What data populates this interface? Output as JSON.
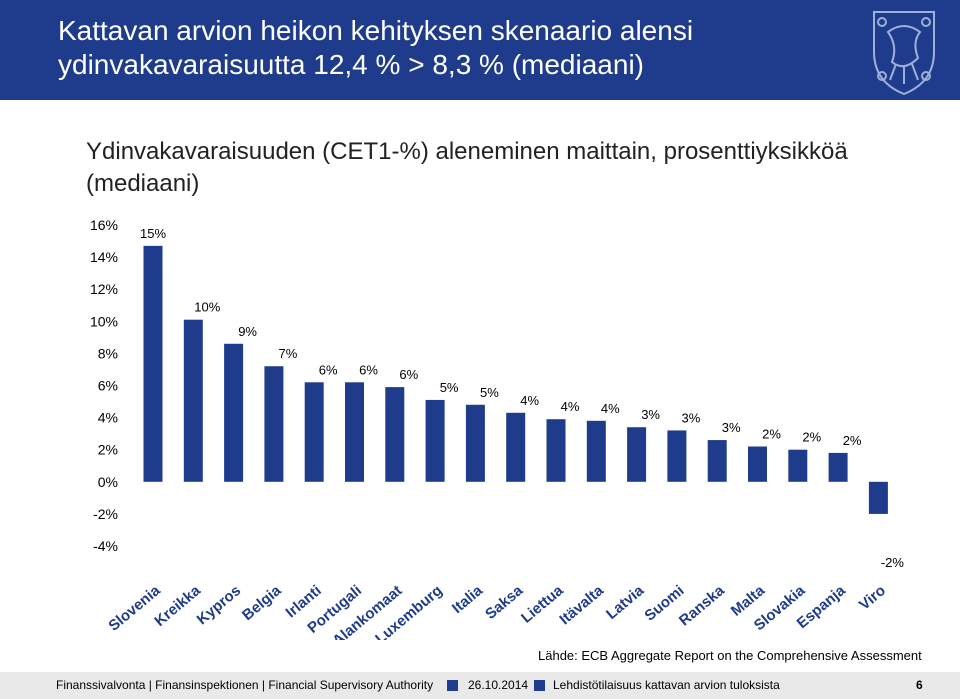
{
  "slide": {
    "title": "Kattavan arvion heikon kehityksen skenaario alensi\nydinvakavaraisuutta 12,4 % > 8,3 % (mediaani)",
    "subtitle": "Ydinvakavaraisuuden (CET1-%) aleneminen maittain, prosenttiyksikköä\n(mediaani)",
    "source": "Lähde: ECB Aggregate Report on the Comprehensive Assessment",
    "footer": {
      "org": "Finanssivalvonta | Finansinspektionen | Financial Supervisory Authority",
      "date": "26.10.2014",
      "topic": "Lehdistötilaisuus kattavan arvion tuloksista",
      "page": "6"
    },
    "colors": {
      "header": "#1f3c8c",
      "bar": "#1f3c8c",
      "footer": "#e9e9e9"
    },
    "logo_icon": "lion-crest-icon"
  },
  "chart_data": {
    "type": "bar",
    "title": "",
    "xlabel": "",
    "ylabel": "",
    "ylim": [
      -4,
      16
    ],
    "yticks": [
      -4,
      -2,
      0,
      2,
      4,
      6,
      8,
      10,
      12,
      14,
      16
    ],
    "ytick_labels": [
      "-4%",
      "-2%",
      "0%",
      "2%",
      "4%",
      "6%",
      "8%",
      "10%",
      "12%",
      "14%",
      "16%"
    ],
    "grid": false,
    "legend": "none",
    "categories": [
      "Slovenia",
      "Kreikka",
      "Kypros",
      "Belgia",
      "Irlanti",
      "Portugali",
      "Alankomaat",
      "Luxemburg",
      "Italia",
      "Saksa",
      "Liettua",
      "Itävalta",
      "Latvia",
      "Suomi",
      "Ranska",
      "Malta",
      "Slovakia",
      "Espanja",
      "Viro"
    ],
    "values": [
      14.7,
      10.1,
      8.6,
      7.2,
      6.2,
      6.2,
      5.9,
      5.1,
      4.8,
      4.3,
      3.9,
      3.8,
      3.4,
      3.2,
      2.6,
      2.2,
      2.0,
      1.8,
      -2.0
    ],
    "data_labels": [
      "15%",
      "10%",
      "9%",
      "7%",
      "6%",
      "6%",
      "6%",
      "5%",
      "5%",
      "4%",
      "4%",
      "4%",
      "3%",
      "3%",
      "3%",
      "2%",
      "2%",
      "2%",
      "-2%"
    ]
  }
}
